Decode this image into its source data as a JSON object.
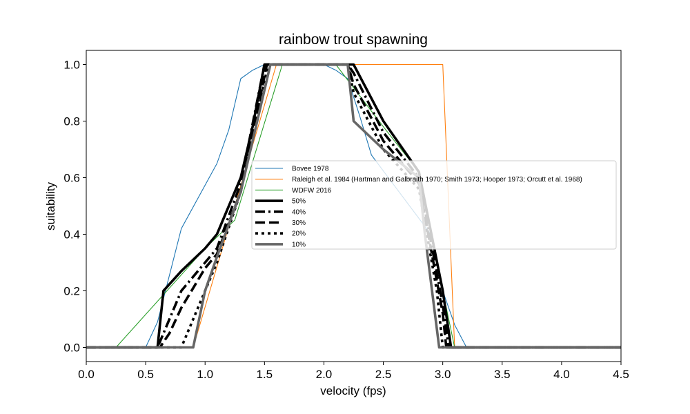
{
  "chart_data": {
    "type": "line",
    "title": "rainbow trout spawning",
    "xlabel": "velocity (fps)",
    "ylabel": "suitability",
    "xlim": [
      0,
      4.5
    ],
    "ylim": [
      -0.05,
      1.05
    ],
    "xticks": [
      0.0,
      0.5,
      1.0,
      1.5,
      2.0,
      2.5,
      3.0,
      3.5,
      4.0,
      4.5
    ],
    "xtick_labels": [
      "0.0",
      "0.5",
      "1.0",
      "1.5",
      "2.0",
      "2.5",
      "3.0",
      "3.5",
      "4.0",
      "4.5"
    ],
    "yticks": [
      0.0,
      0.2,
      0.4,
      0.6,
      0.8,
      1.0
    ],
    "ytick_labels": [
      "0.0",
      "0.2",
      "0.4",
      "0.6",
      "0.8",
      "1.0"
    ],
    "grid": false,
    "legend_position": "center-right",
    "series": [
      {
        "name": "Bovee 1978",
        "color": "#1f77b4",
        "dash": "solid",
        "weight": "thin",
        "x": [
          0,
          0.5,
          0.6,
          0.8,
          1.1,
          1.2,
          1.3,
          1.4,
          1.5,
          1.6,
          2.0,
          2.1,
          2.2,
          2.3,
          2.4,
          2.9,
          3.0,
          3.1,
          3.2,
          4.5
        ],
        "y": [
          0,
          0,
          0.09,
          0.42,
          0.65,
          0.77,
          0.95,
          0.98,
          1.0,
          1.0,
          1.0,
          0.98,
          0.95,
          0.82,
          0.68,
          0.4,
          0.2,
          0.08,
          0,
          0
        ]
      },
      {
        "name": "Raleigh et al. 1984 (Hartman and Galbraith 1970; Smith 1973; Hooper 1973; Orcutt et al. 1968)",
        "color": "#ff7f0e",
        "dash": "solid",
        "weight": "thin",
        "x": [
          0,
          0.9,
          1.6,
          3.0,
          3.1,
          4.5
        ],
        "y": [
          0,
          0,
          1.0,
          1.0,
          0,
          0
        ]
      },
      {
        "name": "WDFW 2016",
        "color": "#2ca02c",
        "dash": "solid",
        "weight": "thin",
        "x": [
          0,
          0.25,
          1.0,
          1.25,
          1.65,
          2.1,
          2.5,
          2.8,
          3.0,
          3.1,
          4.5
        ],
        "y": [
          0,
          0,
          0.35,
          0.45,
          1.0,
          1.0,
          0.78,
          0.62,
          0.2,
          0,
          0
        ]
      },
      {
        "name": "50%",
        "color": "#000000",
        "dash": "solid",
        "weight": "bold",
        "x": [
          0,
          0.6,
          0.65,
          0.8,
          1.0,
          1.1,
          1.3,
          1.4,
          1.5,
          1.55,
          2.2,
          2.25,
          2.5,
          2.8,
          3.0,
          3.07,
          4.5
        ],
        "y": [
          0,
          0,
          0.2,
          0.27,
          0.35,
          0.4,
          0.6,
          0.78,
          1.0,
          1.0,
          1.0,
          1.0,
          0.8,
          0.62,
          0.2,
          0,
          0
        ]
      },
      {
        "name": "40%",
        "color": "#000000",
        "dash": "dashdot",
        "weight": "bold",
        "x": [
          0,
          0.6,
          0.7,
          0.8,
          1.0,
          1.1,
          1.3,
          1.5,
          1.55,
          2.2,
          2.25,
          2.5,
          2.8,
          3.0,
          3.05,
          4.5
        ],
        "y": [
          0,
          0,
          0.1,
          0.2,
          0.3,
          0.35,
          0.58,
          1.0,
          1.0,
          1.0,
          0.97,
          0.76,
          0.6,
          0.15,
          0,
          0
        ]
      },
      {
        "name": "30%",
        "color": "#000000",
        "dash": "dashed",
        "weight": "bold",
        "x": [
          0,
          0.62,
          0.7,
          0.8,
          1.0,
          1.1,
          1.3,
          1.52,
          1.55,
          2.2,
          2.25,
          2.5,
          2.8,
          3.0,
          3.03,
          4.5
        ],
        "y": [
          0,
          0,
          0.05,
          0.14,
          0.28,
          0.33,
          0.55,
          1.0,
          1.0,
          1.0,
          0.93,
          0.73,
          0.58,
          0.12,
          0,
          0
        ]
      },
      {
        "name": "20%",
        "color": "#000000",
        "dash": "dotted",
        "weight": "bold",
        "x": [
          0,
          0.8,
          0.85,
          1.0,
          1.1,
          1.3,
          1.53,
          1.55,
          2.2,
          2.25,
          2.5,
          2.8,
          2.95,
          3.0,
          4.5
        ],
        "y": [
          0,
          0,
          0.05,
          0.2,
          0.3,
          0.55,
          1.0,
          1.0,
          1.0,
          0.9,
          0.7,
          0.56,
          0.2,
          0,
          0
        ]
      },
      {
        "name": "10%",
        "color": "#666666",
        "dash": "solid",
        "weight": "bold",
        "x": [
          0,
          0.9,
          1.0,
          1.1,
          1.3,
          1.55,
          2.2,
          2.25,
          2.5,
          2.8,
          2.85,
          2.97,
          4.5
        ],
        "y": [
          0,
          0,
          0.2,
          0.32,
          0.55,
          1.0,
          1.0,
          0.8,
          0.7,
          0.6,
          0.4,
          0,
          0
        ]
      }
    ]
  }
}
